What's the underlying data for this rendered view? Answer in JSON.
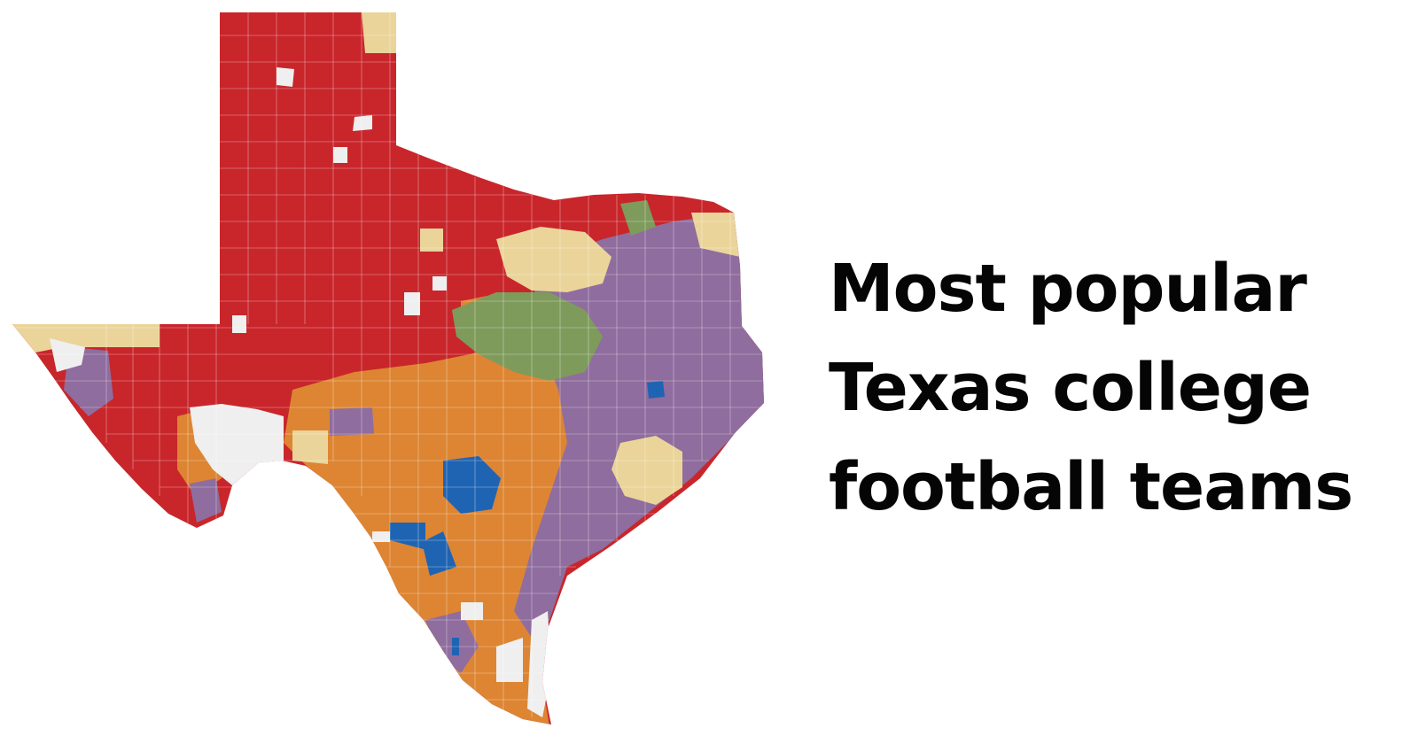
{
  "title": {
    "lines": [
      "Most popular",
      "Texas college",
      "football teams"
    ]
  },
  "map": {
    "region": "Texas",
    "colors": {
      "red": "#c8262b",
      "orange": "#dd8533",
      "purple": "#8f6d9e",
      "green": "#7e9b5c",
      "tan": "#ead49a",
      "blue": "#1f64b3",
      "no_data": "#efefef",
      "border": "#ffffff"
    }
  }
}
